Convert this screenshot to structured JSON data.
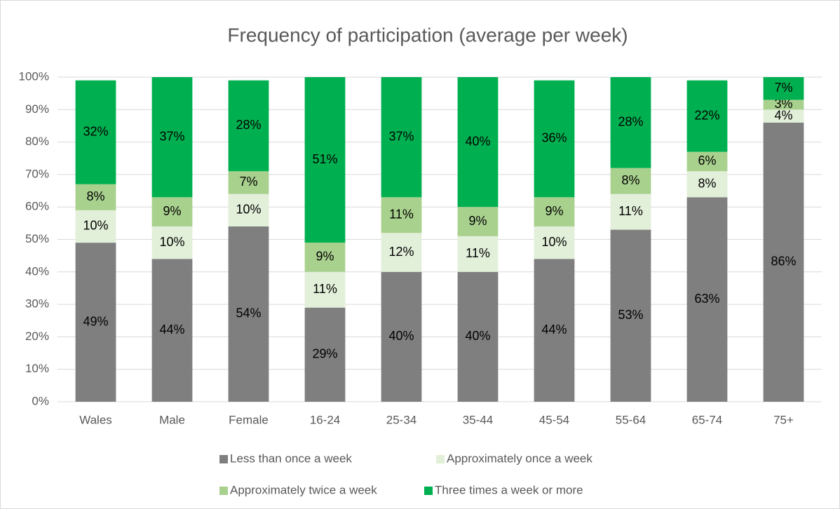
{
  "chart_data": {
    "type": "stacked_bar",
    "title": "Frequency of participation (average per week)",
    "categories": [
      "Wales",
      "Male",
      "Female",
      "16-24",
      "25-34",
      "35-44",
      "45-54",
      "55-64",
      "65-74",
      "75+"
    ],
    "series": [
      {
        "name": "Less than once a week",
        "color": "#7f7f7f",
        "values": [
          49,
          44,
          54,
          29,
          40,
          40,
          44,
          53,
          63,
          86
        ],
        "value_labels": [
          "49%",
          "44%",
          "54%",
          "29%",
          "40%",
          "40%",
          "44%",
          "53%",
          "63%",
          "86%"
        ]
      },
      {
        "name": "Approximately once a week",
        "color": "#e2efd9",
        "values": [
          10,
          10,
          10,
          11,
          12,
          11,
          10,
          11,
          8,
          4
        ],
        "value_labels": [
          "10%",
          "10%",
          "10%",
          "11%",
          "12%",
          "11%",
          "10%",
          "11%",
          "8%",
          "4%"
        ]
      },
      {
        "name": "Approximately twice a week",
        "color": "#a9d18e",
        "values": [
          8,
          9,
          7,
          9,
          11,
          9,
          9,
          8,
          6,
          3
        ],
        "value_labels": [
          "8%",
          "9%",
          "7%",
          "9%",
          "11%",
          "9%",
          "9%",
          "8%",
          "6%",
          "3%"
        ]
      },
      {
        "name": "Three times a week or more",
        "color": "#00b050",
        "values": [
          32,
          37,
          28,
          51,
          37,
          40,
          36,
          28,
          22,
          7
        ],
        "value_labels": [
          "32%",
          "37%",
          "28%",
          "51%",
          "37%",
          "40%",
          "36%",
          "28%",
          "22%",
          "7%"
        ]
      }
    ],
    "ylim": [
      0,
      100
    ],
    "yticks": [
      {
        "value": 0,
        "label": "0%"
      },
      {
        "value": 10,
        "label": "10%"
      },
      {
        "value": 20,
        "label": "20%"
      },
      {
        "value": 30,
        "label": "30%"
      },
      {
        "value": 40,
        "label": "40%"
      },
      {
        "value": 50,
        "label": "50%"
      },
      {
        "value": 60,
        "label": "60%"
      },
      {
        "value": 70,
        "label": "70%"
      },
      {
        "value": 80,
        "label": "80%"
      },
      {
        "value": 90,
        "label": "90%"
      },
      {
        "value": 100,
        "label": "100%"
      }
    ],
    "grid": true,
    "legend": "bottom"
  }
}
